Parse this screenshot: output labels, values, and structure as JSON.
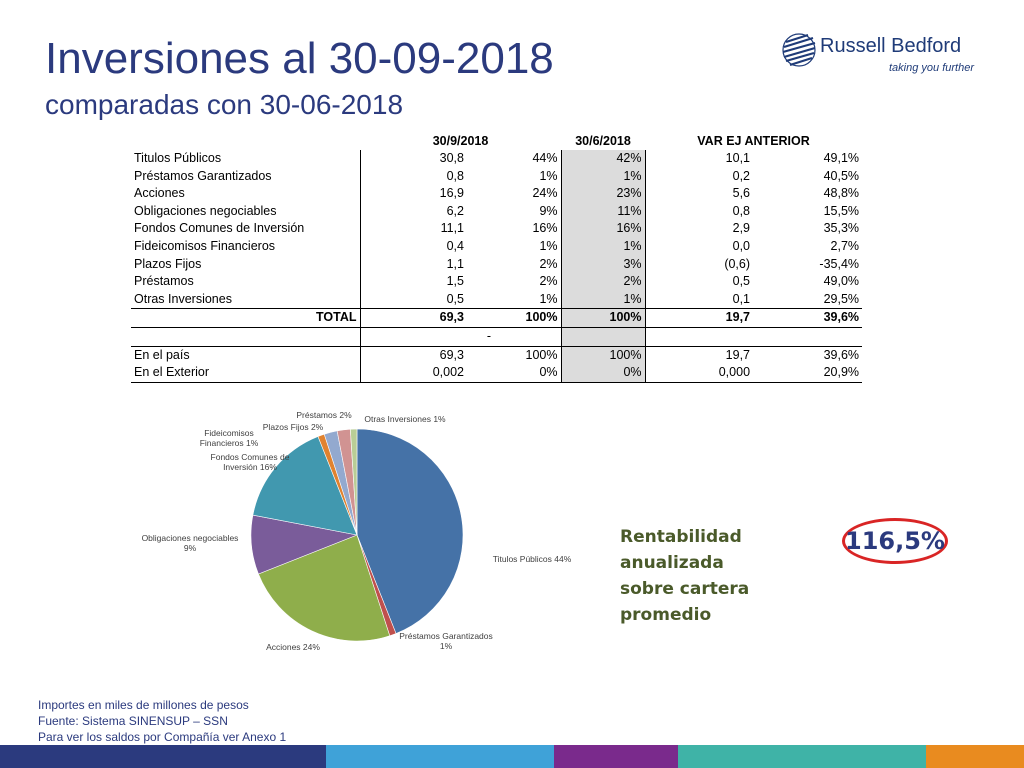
{
  "header": {
    "title": "Inversiones al 30-09-2018",
    "subtitle": "comparadas con 30-06-2018"
  },
  "logo": {
    "name": "Russell Bedford",
    "tagline": "taking you further",
    "color": "#1f3b78"
  },
  "table": {
    "headers": [
      "30/9/2018",
      "30/6/2018",
      "VAR EJ ANTERIOR"
    ],
    "rows": [
      {
        "label": "Titulos Públicos",
        "v1": "30,8",
        "p1": "44%",
        "p2": "42%",
        "var": "10,1",
        "varp": "49,1%"
      },
      {
        "label": "Préstamos Garantizados",
        "v1": "0,8",
        "p1": "1%",
        "p2": "1%",
        "var": "0,2",
        "varp": "40,5%"
      },
      {
        "label": "Acciones",
        "v1": "16,9",
        "p1": "24%",
        "p2": "23%",
        "var": "5,6",
        "varp": "48,8%"
      },
      {
        "label": "Obligaciones negociables",
        "v1": "6,2",
        "p1": "9%",
        "p2": "11%",
        "var": "0,8",
        "varp": "15,5%"
      },
      {
        "label": "Fondos Comunes de Inversión",
        "v1": "11,1",
        "p1": "16%",
        "p2": "16%",
        "var": "2,9",
        "varp": "35,3%"
      },
      {
        "label": "Fideicomisos Financieros",
        "v1": "0,4",
        "p1": "1%",
        "p2": "1%",
        "var": "0,0",
        "varp": "2,7%"
      },
      {
        "label": "Plazos Fijos",
        "v1": "1,1",
        "p1": "2%",
        "p2": "3%",
        "var": "(0,6)",
        "varp": "-35,4%"
      },
      {
        "label": "Préstamos",
        "v1": "1,5",
        "p1": "2%",
        "p2": "2%",
        "var": "0,5",
        "varp": "49,0%"
      },
      {
        "label": "Otras Inversiones",
        "v1": "0,5",
        "p1": "1%",
        "p2": "1%",
        "var": "0,1",
        "varp": "29,5%"
      }
    ],
    "total": {
      "label": "TOTAL",
      "v1": "69,3",
      "p1": "100%",
      "p2": "100%",
      "var": "19,7",
      "varp": "39,6%"
    },
    "dash": "-",
    "origin": [
      {
        "label": "En el país",
        "v1": "69,3",
        "p1": "100%",
        "p2": "100%",
        "var": "19,7",
        "varp": "39,6%"
      },
      {
        "label": "En el Exterior",
        "v1": "0,002",
        "p1": "0%",
        "p2": "0%",
        "var": "0,000",
        "varp": "20,9%"
      }
    ]
  },
  "chart_data": {
    "type": "pie",
    "title": "",
    "slices": [
      {
        "name": "Titulos Públicos",
        "label": "Titulos Públicos 44%",
        "value": 44,
        "color": "#4572a7"
      },
      {
        "name": "Préstamos Garantizados",
        "label": "Préstamos Garantizados 1%",
        "value": 1,
        "color": "#c0504d"
      },
      {
        "name": "Acciones",
        "label": "Acciones 24%",
        "value": 24,
        "color": "#8fae4b"
      },
      {
        "name": "Obligaciones negociables",
        "label": "Obligaciones negociables 9%",
        "value": 9,
        "color": "#7a5c9a"
      },
      {
        "name": "Fondos Comunes de Inversión",
        "label": "Fondos Comunes de Inversión 16%",
        "value": 16,
        "color": "#4198af"
      },
      {
        "name": "Fideicomisos Financieros",
        "label": "Fideicomisos Financieros 1%",
        "value": 1,
        "color": "#e0822f"
      },
      {
        "name": "Plazos Fijos",
        "label": "Plazos Fijos 2%",
        "value": 2,
        "color": "#93a9cf"
      },
      {
        "name": "Préstamos",
        "label": "Préstamos 2%",
        "value": 2,
        "color": "#d19392"
      },
      {
        "name": "Otras Inversiones",
        "label": "Otras Inversiones 1%",
        "value": 1,
        "color": "#b9cd96"
      }
    ]
  },
  "rentabilidad": {
    "label_line1": "Rentabilidad anualizada",
    "label_line2": "sobre cartera promedio",
    "value": "116,5%",
    "circle_color": "#d92525"
  },
  "notes": [
    "Importes en miles de millones de pesos",
    "Fuente: Sistema SINENSUP – SSN",
    "Para ver los saldos por Compañía ver Anexo 1"
  ],
  "colors": {
    "title": "#2b3a7e",
    "bar": [
      "#2b3a7e",
      "#3fa2d8",
      "#7a2a8c",
      "#3fb3a7",
      "#e98b1f"
    ]
  }
}
